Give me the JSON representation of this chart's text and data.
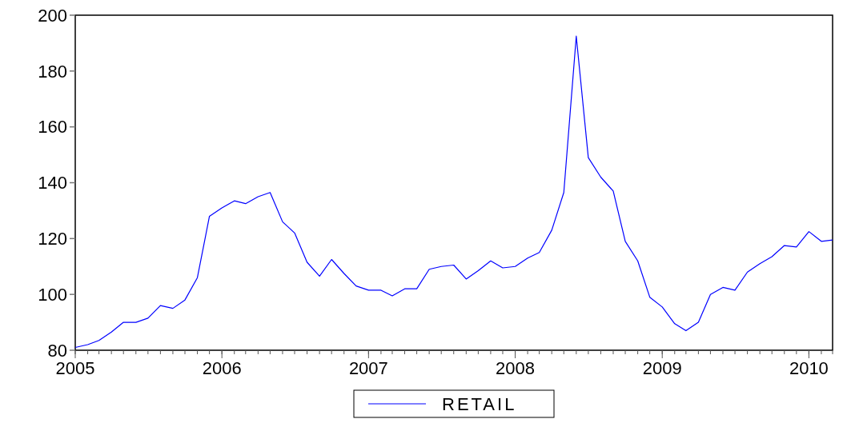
{
  "chart_data": {
    "type": "line",
    "x": [
      "2005-01",
      "2005-02",
      "2005-03",
      "2005-04",
      "2005-05",
      "2005-06",
      "2005-07",
      "2005-08",
      "2005-09",
      "2005-10",
      "2005-11",
      "2005-12",
      "2006-01",
      "2006-02",
      "2006-03",
      "2006-04",
      "2006-05",
      "2006-06",
      "2006-07",
      "2006-08",
      "2006-09",
      "2006-10",
      "2006-11",
      "2006-12",
      "2007-01",
      "2007-02",
      "2007-03",
      "2007-04",
      "2007-05",
      "2007-06",
      "2007-07",
      "2007-08",
      "2007-09",
      "2007-10",
      "2007-11",
      "2007-12",
      "2008-01",
      "2008-02",
      "2008-03",
      "2008-04",
      "2008-05",
      "2008-06",
      "2008-07",
      "2008-08",
      "2008-09",
      "2008-10",
      "2008-11",
      "2008-12",
      "2009-01",
      "2009-02",
      "2009-03",
      "2009-04",
      "2009-05",
      "2009-06",
      "2009-07",
      "2009-08",
      "2009-09",
      "2009-10",
      "2009-11",
      "2009-12",
      "2010-01",
      "2010-02",
      "2010-03"
    ],
    "series": [
      {
        "name": "RETAIL",
        "color": "#0000ff",
        "values": [
          81,
          82,
          83.5,
          86.5,
          90,
          90,
          91.5,
          96,
          95,
          98,
          106,
          128,
          131,
          133.5,
          132.5,
          135,
          136.5,
          126,
          122,
          111.5,
          106.5,
          112.5,
          107.5,
          103,
          101.5,
          101.5,
          99.5,
          102,
          102,
          109,
          110,
          110.5,
          105.5,
          108.5,
          112,
          109.5,
          110,
          113,
          115,
          123,
          136.5,
          192.5,
          149,
          142,
          137,
          119,
          112,
          99,
          95.5,
          89.5,
          87,
          90,
          100,
          102.5,
          101.5,
          108,
          111,
          113.5,
          117.5,
          117,
          122.5,
          119,
          119.5
        ]
      }
    ],
    "xlim": [
      "2005-01",
      "2010-03"
    ],
    "xticks": [
      {
        "value": "2005-01",
        "label": "2005"
      },
      {
        "value": "2006-01",
        "label": "2006"
      },
      {
        "value": "2007-01",
        "label": "2007"
      },
      {
        "value": "2008-01",
        "label": "2008"
      },
      {
        "value": "2009-01",
        "label": "2009"
      },
      {
        "value": "2010-01",
        "label": "2010"
      }
    ],
    "ylim": [
      80,
      200
    ],
    "yticks": [
      80,
      100,
      120,
      140,
      160,
      180,
      200
    ],
    "legend": "bottom",
    "marker": "none",
    "line_style": "solid"
  }
}
